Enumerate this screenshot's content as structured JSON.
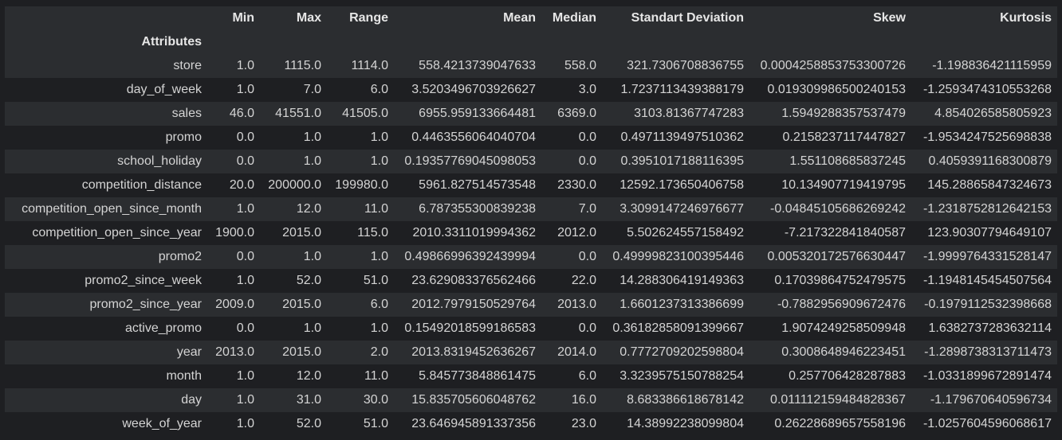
{
  "table": {
    "index_name": "Attributes",
    "columns": [
      "Min",
      "Max",
      "Range",
      "Mean",
      "Median",
      "Standart Deviation",
      "Skew",
      "Kurtosis"
    ],
    "rows": [
      {
        "attr": "store",
        "values": [
          "1.0",
          "1115.0",
          "1114.0",
          "558.4213739047633",
          "558.0",
          "321.7306708836755",
          "0.0004258853753300726",
          "-1.198836421115959"
        ]
      },
      {
        "attr": "day_of_week",
        "values": [
          "1.0",
          "7.0",
          "6.0",
          "3.5203496703926627",
          "3.0",
          "1.7237113439388179",
          "0.019309986500240153",
          "-1.2593474310553268"
        ]
      },
      {
        "attr": "sales",
        "values": [
          "46.0",
          "41551.0",
          "41505.0",
          "6955.959133664481",
          "6369.0",
          "3103.81367747283",
          "1.5949288357537479",
          "4.854026585805923"
        ]
      },
      {
        "attr": "promo",
        "values": [
          "0.0",
          "1.0",
          "1.0",
          "0.4463556064040704",
          "0.0",
          "0.4971139497510362",
          "0.2158237117447827",
          "-1.9534247525698838"
        ]
      },
      {
        "attr": "school_holiday",
        "values": [
          "0.0",
          "1.0",
          "1.0",
          "0.19357769045098053",
          "0.0",
          "0.3951017188116395",
          "1.551108685837245",
          "0.4059391168300879"
        ]
      },
      {
        "attr": "competition_distance",
        "values": [
          "20.0",
          "200000.0",
          "199980.0",
          "5961.827514573548",
          "2330.0",
          "12592.173650406758",
          "10.134907719419795",
          "145.28865847324673"
        ]
      },
      {
        "attr": "competition_open_since_month",
        "values": [
          "1.0",
          "12.0",
          "11.0",
          "6.787355300839238",
          "7.0",
          "3.3099147246976677",
          "-0.04845105686269242",
          "-1.2318752812642153"
        ]
      },
      {
        "attr": "competition_open_since_year",
        "values": [
          "1900.0",
          "2015.0",
          "115.0",
          "2010.3311019994362",
          "2012.0",
          "5.502624557158492",
          "-7.217322841840587",
          "123.90307794649107"
        ]
      },
      {
        "attr": "promo2",
        "values": [
          "0.0",
          "1.0",
          "1.0",
          "0.49866996392439994",
          "0.0",
          "0.49999823100395446",
          "0.005320172576630447",
          "-1.9999764331528147"
        ]
      },
      {
        "attr": "promo2_since_week",
        "values": [
          "1.0",
          "52.0",
          "51.0",
          "23.629083376562466",
          "22.0",
          "14.288306419149363",
          "0.17039864752479575",
          "-1.1948145454507564"
        ]
      },
      {
        "attr": "promo2_since_year",
        "values": [
          "2009.0",
          "2015.0",
          "6.0",
          "2012.7979150529764",
          "2013.0",
          "1.6601237313386699",
          "-0.7882956909672476",
          "-0.1979112532398668"
        ]
      },
      {
        "attr": "active_promo",
        "values": [
          "0.0",
          "1.0",
          "1.0",
          "0.15492018599186583",
          "0.0",
          "0.36182858091399667",
          "1.9074249258509948",
          "1.6382737283632114"
        ]
      },
      {
        "attr": "year",
        "values": [
          "2013.0",
          "2015.0",
          "2.0",
          "2013.8319452636267",
          "2014.0",
          "0.7772709202598804",
          "0.3008648946223451",
          "-1.2898738313711473"
        ]
      },
      {
        "attr": "month",
        "values": [
          "1.0",
          "12.0",
          "11.0",
          "5.845773848861475",
          "6.0",
          "3.3239575150788254",
          "0.257706428287883",
          "-1.0331899672891474"
        ]
      },
      {
        "attr": "day",
        "values": [
          "1.0",
          "31.0",
          "30.0",
          "15.835705606048762",
          "16.0",
          "8.683386618678142",
          "0.011112159484828367",
          "-1.179670640596734"
        ]
      },
      {
        "attr": "week_of_year",
        "values": [
          "1.0",
          "52.0",
          "51.0",
          "23.646945891337356",
          "23.0",
          "14.38992238099804",
          "0.26228689657558196",
          "-1.0257604596068617"
        ]
      }
    ]
  },
  "colors": {
    "background": "#1e1f22",
    "stripe": "#2b2d30",
    "text": "#d4d4d4",
    "header_text": "#e6e6e6"
  }
}
